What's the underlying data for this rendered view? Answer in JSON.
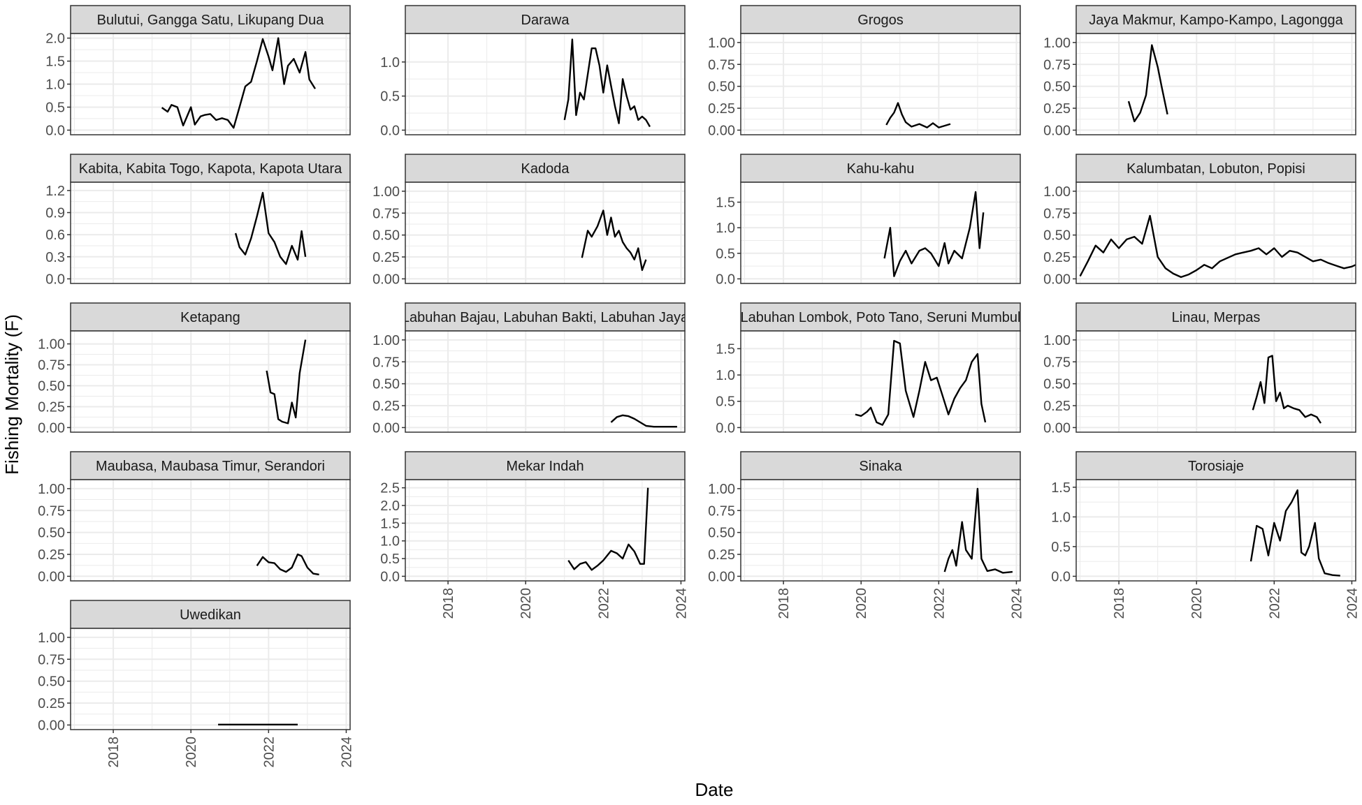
{
  "chart_data": {
    "type": "line",
    "layout": "facet_wrap",
    "xlabel": "Date",
    "ylabel": "Fishing Mortality (F)",
    "x_ticks": [
      "2018",
      "2020",
      "2022",
      "2024"
    ],
    "xlim": [
      2016.9,
      2024.1
    ],
    "grid": true,
    "legend": "none",
    "colors": {
      "panel_bg": "#ffffff",
      "grid": "#ebebeb",
      "strip_bg": "#d9d9d9",
      "line": "#000000",
      "border": "#333333"
    },
    "panels": [
      {
        "name": "Bulutui, Gangga Satu, Likupang Dua",
        "yticks": [
          "0.0",
          "0.5",
          "1.0",
          "1.5",
          "2.0"
        ],
        "ylim": [
          0,
          2.0
        ],
        "x": [
          2019.25,
          2019.4,
          2019.5,
          2019.65,
          2019.8,
          2019.9,
          2020.0,
          2020.1,
          2020.25,
          2020.35,
          2020.5,
          2020.65,
          2020.8,
          2020.95,
          2021.1,
          2021.25,
          2021.4,
          2021.55,
          2021.7,
          2021.85,
          2022.0,
          2022.1,
          2022.25,
          2022.4,
          2022.5,
          2022.65,
          2022.8,
          2022.95,
          2023.05,
          2023.2
        ],
        "y": [
          0.49,
          0.4,
          0.55,
          0.5,
          0.1,
          0.3,
          0.5,
          0.12,
          0.3,
          0.33,
          0.35,
          0.22,
          0.26,
          0.22,
          0.05,
          0.5,
          0.95,
          1.05,
          1.5,
          1.98,
          1.6,
          1.3,
          2.0,
          1.0,
          1.4,
          1.55,
          1.25,
          1.7,
          1.1,
          0.9
        ]
      },
      {
        "name": "Darawa",
        "yticks": [
          "0.0",
          "0.5",
          "1.0"
        ],
        "ylim": [
          0,
          1.35
        ],
        "x": [
          2021.0,
          2021.1,
          2021.2,
          2021.3,
          2021.4,
          2021.5,
          2021.6,
          2021.7,
          2021.8,
          2021.9,
          2022.0,
          2022.1,
          2022.2,
          2022.3,
          2022.4,
          2022.5,
          2022.6,
          2022.7,
          2022.8,
          2022.9,
          2023.0,
          2023.1,
          2023.2
        ],
        "y": [
          0.15,
          0.45,
          1.33,
          0.22,
          0.55,
          0.45,
          0.82,
          1.2,
          1.2,
          0.95,
          0.55,
          0.95,
          0.65,
          0.35,
          0.1,
          0.75,
          0.5,
          0.3,
          0.35,
          0.15,
          0.2,
          0.15,
          0.05
        ]
      },
      {
        "name": "Grogos",
        "yticks": [
          "0.00",
          "0.25",
          "0.50",
          "0.75",
          "1.00"
        ],
        "ylim": [
          0,
          1.05
        ],
        "x": [
          2020.65,
          2020.75,
          2020.85,
          2020.95,
          2021.05,
          2021.15,
          2021.3,
          2021.5,
          2021.7,
          2021.85,
          2022.0,
          2022.15,
          2022.3
        ],
        "y": [
          0.06,
          0.14,
          0.2,
          0.31,
          0.18,
          0.09,
          0.04,
          0.07,
          0.03,
          0.08,
          0.03,
          0.05,
          0.07
        ]
      },
      {
        "name": "Jaya Makmur, Kampo-Kampo, Lagongga",
        "yticks": [
          "0.00",
          "0.25",
          "0.50",
          "0.75",
          "1.00"
        ],
        "ylim": [
          0,
          1.05
        ],
        "x": [
          2018.25,
          2018.4,
          2018.55,
          2018.7,
          2018.85,
          2019.0,
          2019.1,
          2019.25
        ],
        "y": [
          0.33,
          0.1,
          0.2,
          0.4,
          0.97,
          0.72,
          0.5,
          0.18
        ]
      },
      {
        "name": "Kabita, Kabita Togo, Kapota, Kapota Utara",
        "yticks": [
          "0.0",
          "0.3",
          "0.6",
          "0.9",
          "1.2"
        ],
        "ylim": [
          0,
          1.25
        ],
        "x": [
          2021.15,
          2021.25,
          2021.4,
          2021.55,
          2021.7,
          2021.85,
          2022.0,
          2022.15,
          2022.3,
          2022.45,
          2022.6,
          2022.75,
          2022.85,
          2022.95
        ],
        "y": [
          0.62,
          0.43,
          0.33,
          0.55,
          0.85,
          1.17,
          0.62,
          0.5,
          0.3,
          0.2,
          0.45,
          0.26,
          0.65,
          0.3
        ]
      },
      {
        "name": "Kadoda",
        "yticks": [
          "0.00",
          "0.25",
          "0.50",
          "0.75",
          "1.00"
        ],
        "ylim": [
          0,
          1.05
        ],
        "x": [
          2021.45,
          2021.6,
          2021.7,
          2021.85,
          2022.0,
          2022.1,
          2022.2,
          2022.3,
          2022.4,
          2022.5,
          2022.6,
          2022.7,
          2022.8,
          2022.9,
          2023.0,
          2023.1
        ],
        "y": [
          0.24,
          0.55,
          0.48,
          0.6,
          0.78,
          0.5,
          0.7,
          0.48,
          0.55,
          0.42,
          0.35,
          0.3,
          0.22,
          0.35,
          0.1,
          0.22
        ]
      },
      {
        "name": "Kahu-kahu",
        "yticks": [
          "0.0",
          "0.5",
          "1.0",
          "1.5"
        ],
        "ylim": [
          0,
          1.8
        ],
        "x": [
          2020.6,
          2020.75,
          2020.85,
          2021.0,
          2021.15,
          2021.3,
          2021.5,
          2021.65,
          2021.8,
          2022.0,
          2022.15,
          2022.25,
          2022.4,
          2022.6,
          2022.8,
          2022.95,
          2023.05,
          2023.15
        ],
        "y": [
          0.4,
          1.0,
          0.05,
          0.35,
          0.55,
          0.3,
          0.55,
          0.6,
          0.5,
          0.25,
          0.7,
          0.3,
          0.55,
          0.4,
          1.0,
          1.7,
          0.6,
          1.3
        ]
      },
      {
        "name": "Kalumbatan, Lobuton, Popisi",
        "yticks": [
          "0.00",
          "0.25",
          "0.50",
          "0.75",
          "1.00"
        ],
        "ylim": [
          0,
          1.05
        ],
        "x": [
          2017.0,
          2017.2,
          2017.4,
          2017.6,
          2017.8,
          2018.0,
          2018.2,
          2018.4,
          2018.6,
          2018.8,
          2019.0,
          2019.2,
          2019.4,
          2019.6,
          2019.8,
          2020.0,
          2020.2,
          2020.4,
          2020.6,
          2020.8,
          2021.0,
          2021.2,
          2021.4,
          2021.6,
          2021.8,
          2022.0,
          2022.2,
          2022.4,
          2022.6,
          2022.8,
          2023.0,
          2023.2,
          2023.4,
          2023.6,
          2023.8,
          2024.0,
          2024.1
        ],
        "y": [
          0.03,
          0.2,
          0.38,
          0.3,
          0.45,
          0.35,
          0.45,
          0.48,
          0.4,
          0.72,
          0.25,
          0.12,
          0.06,
          0.02,
          0.05,
          0.1,
          0.16,
          0.12,
          0.2,
          0.24,
          0.28,
          0.3,
          0.32,
          0.35,
          0.28,
          0.35,
          0.25,
          0.32,
          0.3,
          0.25,
          0.2,
          0.22,
          0.18,
          0.15,
          0.12,
          0.14,
          0.16
        ]
      },
      {
        "name": "Ketapang",
        "yticks": [
          "0.00",
          "0.25",
          "0.50",
          "0.75",
          "1.00"
        ],
        "ylim": [
          0,
          1.1
        ],
        "x": [
          2021.95,
          2022.05,
          2022.15,
          2022.25,
          2022.35,
          2022.5,
          2022.6,
          2022.7,
          2022.8,
          2022.95
        ],
        "y": [
          0.68,
          0.42,
          0.4,
          0.1,
          0.07,
          0.05,
          0.3,
          0.12,
          0.65,
          1.05
        ]
      },
      {
        "name": "Labuhan Bajau, Labuhan Bakti, Labuhan Jaya",
        "yticks": [
          "0.00",
          "0.25",
          "0.50",
          "0.75",
          "1.00"
        ],
        "ylim": [
          0,
          1.05
        ],
        "x": [
          2022.2,
          2022.35,
          2022.5,
          2022.65,
          2022.8,
          2022.95,
          2023.1,
          2023.3,
          2023.6,
          2023.9
        ],
        "y": [
          0.06,
          0.12,
          0.14,
          0.13,
          0.1,
          0.06,
          0.02,
          0.01,
          0.01,
          0.01
        ]
      },
      {
        "name": "Labuhan Lombok, Poto Tano, Seruni Mumbul",
        "yticks": [
          "0.0",
          "0.5",
          "1.0",
          "1.5"
        ],
        "ylim": [
          0,
          1.75
        ],
        "x": [
          2019.85,
          2020.0,
          2020.15,
          2020.25,
          2020.4,
          2020.55,
          2020.7,
          2020.85,
          2021.0,
          2021.15,
          2021.35,
          2021.5,
          2021.65,
          2021.8,
          2021.95,
          2022.1,
          2022.25,
          2022.4,
          2022.55,
          2022.7,
          2022.85,
          2023.0,
          2023.1,
          2023.2
        ],
        "y": [
          0.25,
          0.22,
          0.3,
          0.38,
          0.1,
          0.05,
          0.25,
          1.65,
          1.6,
          0.7,
          0.2,
          0.7,
          1.25,
          0.9,
          0.95,
          0.6,
          0.25,
          0.55,
          0.75,
          0.9,
          1.25,
          1.4,
          0.45,
          0.1
        ]
      },
      {
        "name": "Linau, Merpas",
        "yticks": [
          "0.00",
          "0.25",
          "0.50",
          "0.75",
          "1.00"
        ],
        "ylim": [
          0,
          1.05
        ],
        "x": [
          2021.45,
          2021.55,
          2021.65,
          2021.75,
          2021.85,
          2021.95,
          2022.05,
          2022.15,
          2022.25,
          2022.35,
          2022.5,
          2022.65,
          2022.8,
          2022.95,
          2023.1,
          2023.2
        ],
        "y": [
          0.2,
          0.35,
          0.52,
          0.28,
          0.8,
          0.82,
          0.3,
          0.4,
          0.22,
          0.25,
          0.22,
          0.2,
          0.12,
          0.15,
          0.12,
          0.05
        ]
      },
      {
        "name": "Maubasa, Maubasa Timur, Serandori",
        "yticks": [
          "0.00",
          "0.25",
          "0.50",
          "0.75",
          "1.00"
        ],
        "ylim": [
          0,
          1.05
        ],
        "x": [
          2021.7,
          2021.85,
          2022.0,
          2022.15,
          2022.3,
          2022.45,
          2022.6,
          2022.75,
          2022.85,
          2023.0,
          2023.15,
          2023.3
        ],
        "y": [
          0.12,
          0.22,
          0.16,
          0.15,
          0.08,
          0.05,
          0.1,
          0.25,
          0.23,
          0.1,
          0.03,
          0.02
        ]
      },
      {
        "name": "Mekar Indah",
        "yticks": [
          "0.0",
          "0.5",
          "1.0",
          "1.5",
          "2.0",
          "2.5"
        ],
        "ylim": [
          0,
          2.6
        ],
        "x": [
          2021.1,
          2021.25,
          2021.4,
          2021.55,
          2021.7,
          2021.85,
          2022.0,
          2022.2,
          2022.35,
          2022.5,
          2022.65,
          2022.8,
          2022.95,
          2023.05,
          2023.15
        ],
        "y": [
          0.45,
          0.2,
          0.35,
          0.4,
          0.18,
          0.3,
          0.45,
          0.72,
          0.65,
          0.5,
          0.9,
          0.7,
          0.35,
          0.35,
          2.5
        ]
      },
      {
        "name": "Sinaka",
        "yticks": [
          "0.00",
          "0.25",
          "0.50",
          "0.75",
          "1.00"
        ],
        "ylim": [
          0,
          1.05
        ],
        "x": [
          2022.15,
          2022.25,
          2022.35,
          2022.45,
          2022.6,
          2022.7,
          2022.85,
          2023.0,
          2023.1,
          2023.25,
          2023.45,
          2023.65,
          2023.9
        ],
        "y": [
          0.05,
          0.2,
          0.3,
          0.12,
          0.62,
          0.3,
          0.2,
          1.0,
          0.2,
          0.06,
          0.08,
          0.04,
          0.05
        ]
      },
      {
        "name": "Torosiaje",
        "yticks": [
          "0.0",
          "0.5",
          "1.0",
          "1.5"
        ],
        "ylim": [
          0,
          1.55
        ],
        "x": [
          2021.4,
          2021.55,
          2021.7,
          2021.85,
          2022.0,
          2022.15,
          2022.3,
          2022.45,
          2022.6,
          2022.7,
          2022.8,
          2022.9,
          2023.05,
          2023.15,
          2023.3,
          2023.5,
          2023.7
        ],
        "y": [
          0.25,
          0.85,
          0.8,
          0.35,
          0.9,
          0.6,
          1.1,
          1.25,
          1.45,
          0.4,
          0.35,
          0.5,
          0.9,
          0.3,
          0.05,
          0.02,
          0.01
        ]
      },
      {
        "name": "Uwedikan",
        "yticks": [
          "0.00",
          "0.25",
          "0.50",
          "0.75",
          "1.00"
        ],
        "ylim": [
          0,
          1.05
        ],
        "x": [
          2020.7,
          2021.5,
          2022.2,
          2022.75
        ],
        "y": [
          0.005,
          0.005,
          0.005,
          0.005
        ]
      }
    ]
  }
}
